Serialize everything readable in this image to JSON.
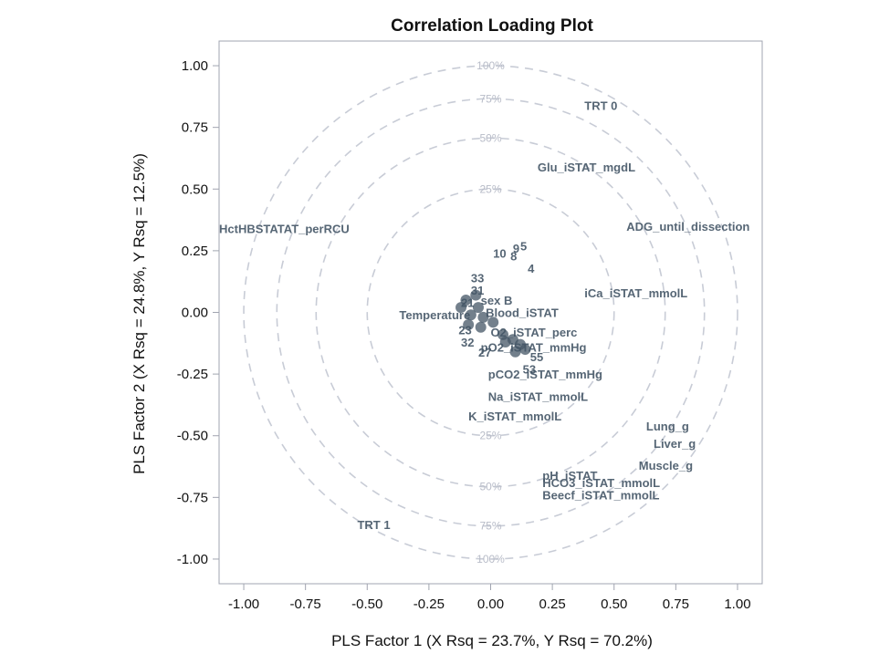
{
  "chart_data": {
    "type": "scatter",
    "title": "Correlation Loading Plot",
    "xlabel": "PLS Factor 1 (X Rsq = 23.7%, Y Rsq = 70.2%)",
    "ylabel": "PLS Factor 2 (X Rsq = 24.8%, Y Rsq = 12.5%)",
    "xlim": [
      -1.1,
      1.1
    ],
    "ylim": [
      -1.1,
      1.1
    ],
    "x_ticks": [
      "-1.00",
      "-0.75",
      "-0.50",
      "-0.25",
      "0.00",
      "0.25",
      "0.50",
      "0.75",
      "1.00"
    ],
    "y_ticks": [
      "1.00",
      "0.75",
      "0.50",
      "0.25",
      "0.00",
      "-0.25",
      "-0.50",
      "-0.75",
      "-1.00"
    ],
    "x_tick_values": [
      -1.0,
      -0.75,
      -0.5,
      -0.25,
      0.0,
      0.25,
      0.5,
      0.75,
      1.0
    ],
    "y_tick_values": [
      1.0,
      0.75,
      0.5,
      0.25,
      0.0,
      -0.25,
      -0.5,
      -0.75,
      -1.0
    ],
    "circles": [
      {
        "label": "100%",
        "radius": 1.0
      },
      {
        "label": "75%",
        "radius": 0.866
      },
      {
        "label": "50%",
        "radius": 0.707
      },
      {
        "label": "25%",
        "radius": 0.5
      }
    ],
    "circle_label_positions": [
      {
        "label": "100%",
        "y": 1.0
      },
      {
        "label": "75%",
        "y": 0.866
      },
      {
        "label": "50%",
        "y": 0.707
      },
      {
        "label": "25%",
        "y": 0.5
      },
      {
        "label": "25%",
        "y": -0.5
      },
      {
        "label": "50%",
        "y": -0.707
      },
      {
        "label": "75%",
        "y": -0.866
      },
      {
        "label": "100%",
        "y": -1.0
      }
    ],
    "points": [
      {
        "label": "TRT 0",
        "x": 0.38,
        "y": 0.84
      },
      {
        "label": "Glu_iSTAT_mgdL",
        "x": 0.19,
        "y": 0.59
      },
      {
        "label": "ADG_until_dissection",
        "x": 0.55,
        "y": 0.35
      },
      {
        "label": "HctHBSTATAT_perRCU",
        "x": -1.1,
        "y": 0.34
      },
      {
        "label": "iCa_iSTAT_mmolL",
        "x": 0.38,
        "y": 0.08
      },
      {
        "label": "Temperature",
        "x": -0.37,
        "y": -0.01
      },
      {
        "label": "sex B",
        "x": -0.04,
        "y": 0.05
      },
      {
        "label": "Blood_iSTAT",
        "x": -0.02,
        "y": 0.0
      },
      {
        "label": "O2_iSTAT_perc",
        "x": 0.0,
        "y": -0.08
      },
      {
        "label": "pO2_iSTAT_mmHg",
        "x": -0.04,
        "y": -0.14
      },
      {
        "label": "pCO2_iSTAT_mmHg",
        "x": -0.01,
        "y": -0.25
      },
      {
        "label": "Na_iSTAT_mmolL",
        "x": -0.01,
        "y": -0.34
      },
      {
        "label": "K_iSTAT_mmolL",
        "x": -0.09,
        "y": -0.42
      },
      {
        "label": "Lung_g",
        "x": 0.63,
        "y": -0.46
      },
      {
        "label": "Liver_g",
        "x": 0.66,
        "y": -0.53
      },
      {
        "label": "Muscle_g",
        "x": 0.6,
        "y": -0.62
      },
      {
        "label": "pH_iSTAT",
        "x": 0.21,
        "y": -0.66
      },
      {
        "label": "HCO3_iSTAT_mmolL",
        "x": 0.21,
        "y": -0.69
      },
      {
        "label": "Beecf_iSTAT_mmolL",
        "x": 0.21,
        "y": -0.74
      },
      {
        "label": "TRT 1",
        "x": -0.54,
        "y": -0.86
      },
      {
        "label": "10",
        "x": 0.01,
        "y": 0.24
      },
      {
        "label": "8",
        "x": 0.08,
        "y": 0.23
      },
      {
        "label": "9",
        "x": 0.09,
        "y": 0.26
      },
      {
        "label": "5",
        "x": 0.12,
        "y": 0.27
      },
      {
        "label": "4",
        "x": 0.15,
        "y": 0.18
      },
      {
        "label": "33",
        "x": -0.08,
        "y": 0.14
      },
      {
        "label": "31",
        "x": -0.08,
        "y": 0.09
      },
      {
        "label": "21",
        "x": -0.12,
        "y": 0.04
      },
      {
        "label": "32",
        "x": -0.12,
        "y": -0.12
      },
      {
        "label": "27",
        "x": -0.05,
        "y": -0.16
      },
      {
        "label": "23",
        "x": -0.13,
        "y": -0.07
      },
      {
        "label": "55",
        "x": 0.16,
        "y": -0.18
      },
      {
        "label": "53",
        "x": 0.13,
        "y": -0.23
      }
    ],
    "unlabeled_marks": [
      {
        "x": -0.12,
        "y": 0.02
      },
      {
        "x": -0.1,
        "y": 0.05
      },
      {
        "x": -0.06,
        "y": 0.07
      },
      {
        "x": -0.05,
        "y": 0.02
      },
      {
        "x": -0.08,
        "y": -0.01
      },
      {
        "x": -0.03,
        "y": -0.02
      },
      {
        "x": -0.09,
        "y": -0.05
      },
      {
        "x": -0.04,
        "y": -0.06
      },
      {
        "x": 0.01,
        "y": -0.04
      },
      {
        "x": 0.05,
        "y": -0.09
      },
      {
        "x": 0.09,
        "y": -0.11
      },
      {
        "x": 0.12,
        "y": -0.13
      },
      {
        "x": 0.1,
        "y": -0.16
      },
      {
        "x": 0.14,
        "y": -0.15
      },
      {
        "x": 0.06,
        "y": -0.12
      }
    ]
  },
  "colors": {
    "point_label": "#445566",
    "circle": "#c8ccd6",
    "circle_label": "#b8bcc8",
    "axis": "#a0a4b0",
    "text": "#111111"
  }
}
